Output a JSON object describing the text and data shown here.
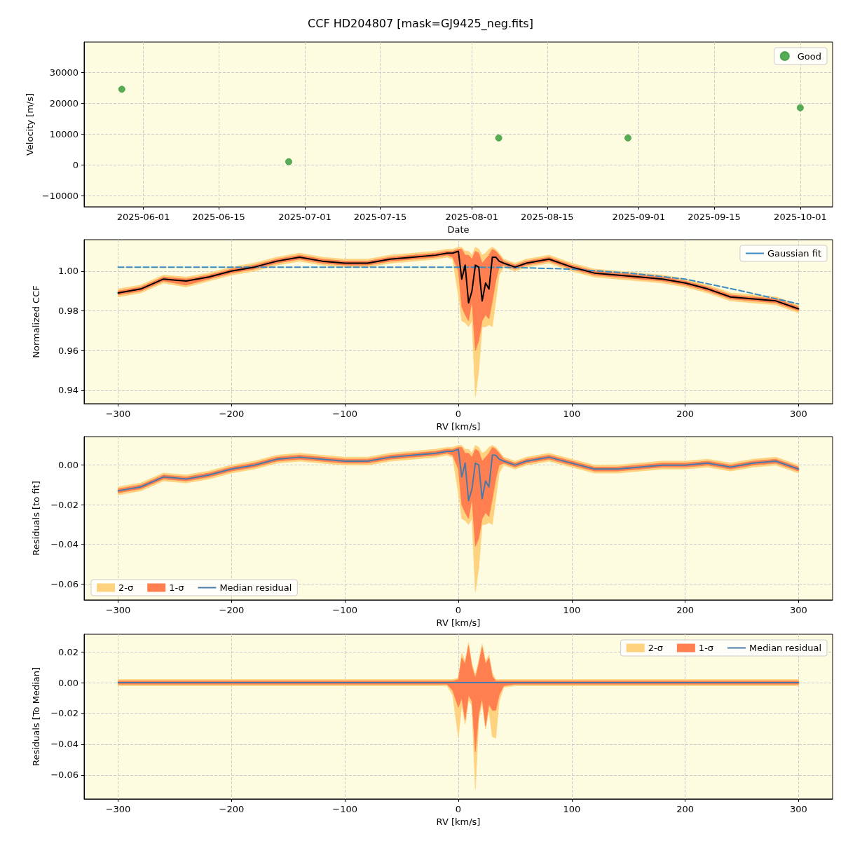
{
  "chart_data": [
    {
      "type": "scatter",
      "title": "CCF HD204807 [mask=GJ9425_neg.fits]",
      "xlabel": "Date",
      "ylabel": "Velocity [m/s]",
      "x": [
        "2025-05-28",
        "2025-06-28",
        "2025-08-06",
        "2025-08-30",
        "2025-10-01"
      ],
      "series": [
        {
          "name": "Good",
          "color": "#3c9e3c",
          "values": [
            24500,
            1000,
            8700,
            8700,
            18500
          ]
        }
      ],
      "xlim": [
        "2025-05-21",
        "2025-10-07"
      ],
      "xticks": [
        "2025-06-01",
        "2025-06-15",
        "2025-07-01",
        "2025-07-15",
        "2025-08-01",
        "2025-08-15",
        "2025-09-01",
        "2025-09-15",
        "2025-10-01"
      ],
      "ylim": [
        -13600,
        39800
      ],
      "yticks": [
        {
          "value": -10000,
          "label": "−10000"
        },
        0,
        10000,
        20000,
        30000
      ],
      "grid": true,
      "legend": "top right",
      "marker": "circle"
    },
    {
      "type": "line",
      "xlabel": "RV [km/s]",
      "ylabel": "Normalized CCF",
      "x": [
        -300,
        -280,
        -260,
        -240,
        -220,
        -200,
        -180,
        -160,
        -140,
        -120,
        -100,
        -80,
        -60,
        -40,
        -20,
        -10,
        -5,
        0,
        3,
        6,
        9,
        12,
        15,
        18,
        21,
        24,
        27,
        30,
        33,
        36,
        40,
        50,
        60,
        80,
        100,
        120,
        140,
        160,
        180,
        200,
        220,
        240,
        260,
        280,
        300
      ],
      "series": [
        {
          "color": "#fed27f",
          "values": [
            null,
            null,
            null,
            null,
            null,
            null,
            null,
            null,
            null,
            null,
            null,
            null,
            null,
            null,
            null,
            null,
            null,
            null,
            null,
            null,
            null,
            null,
            null,
            null,
            null,
            null,
            null,
            null,
            null,
            null,
            null,
            null,
            null,
            null,
            null,
            null,
            null,
            null,
            null,
            null,
            null,
            null,
            null,
            null,
            null
          ],
          "lower": [
            0.987,
            0.989,
            0.994,
            0.992,
            0.995,
            0.998,
            1.0,
            1.003,
            1.005,
            1.003,
            1.002,
            1.002,
            1.004,
            1.005,
            1.006,
            1.007,
            1.006,
            0.988,
            0.975,
            0.974,
            0.972,
            0.975,
            0.937,
            0.95,
            0.972,
            0.972,
            0.973,
            0.972,
            0.985,
            0.998,
            1.002,
            1.0,
            1.002,
            1.004,
            1.0,
            0.997,
            0.996,
            0.995,
            0.994,
            0.992,
            0.989,
            0.985,
            0.984,
            0.983,
            0.979
          ],
          "upper": [
            0.991,
            0.993,
            0.998,
            0.997,
            0.999,
            1.002,
            1.004,
            1.007,
            1.009,
            1.007,
            1.006,
            1.006,
            1.008,
            1.009,
            1.01,
            1.011,
            1.011,
            1.012,
            1.012,
            1.01,
            1.01,
            1.008,
            1.012,
            1.011,
            1.008,
            1.009,
            1.011,
            1.012,
            1.011,
            1.009,
            1.006,
            1.004,
            1.006,
            1.008,
            1.004,
            1.001,
            1.0,
            0.999,
            0.998,
            0.996,
            0.993,
            0.989,
            0.988,
            0.987,
            0.983
          ]
        },
        {
          "color": "#ff7f50",
          "values": [
            null,
            null,
            null,
            null,
            null,
            null,
            null,
            null,
            null,
            null,
            null,
            null,
            null,
            null,
            null,
            null,
            null,
            null,
            null,
            null,
            null,
            null,
            null,
            null,
            null,
            null,
            null,
            null,
            null,
            null,
            null,
            null,
            null,
            null,
            null,
            null,
            null,
            null,
            null,
            null,
            null,
            null,
            null,
            null,
            null
          ],
          "lower": [
            0.988,
            0.99,
            0.995,
            0.993,
            0.996,
            0.999,
            1.001,
            1.004,
            1.006,
            1.004,
            1.003,
            1.003,
            1.005,
            1.006,
            1.007,
            1.008,
            1.007,
            1.0,
            0.982,
            0.978,
            0.975,
            0.985,
            0.96,
            0.965,
            0.975,
            0.978,
            0.976,
            0.985,
            0.995,
            1.002,
            1.003,
            1.001,
            1.003,
            1.005,
            1.001,
            0.998,
            0.997,
            0.996,
            0.995,
            0.993,
            0.99,
            0.986,
            0.985,
            0.984,
            0.98
          ],
          "upper": [
            0.99,
            0.992,
            0.997,
            0.996,
            0.998,
            1.001,
            1.003,
            1.006,
            1.008,
            1.006,
            1.005,
            1.005,
            1.007,
            1.008,
            1.009,
            1.01,
            1.01,
            1.011,
            1.011,
            1.008,
            1.008,
            1.006,
            1.01,
            1.009,
            1.004,
            1.006,
            1.008,
            1.011,
            1.01,
            1.008,
            1.005,
            1.003,
            1.005,
            1.007,
            1.003,
            1.0,
            0.999,
            0.998,
            0.997,
            0.995,
            0.992,
            0.988,
            0.987,
            0.986,
            0.982
          ]
        },
        {
          "name": "Gaussian fit",
          "color": "#3b8bc2",
          "line_style": "dashed",
          "x": [
            -300,
            -200,
            -100,
            0,
            50,
            100,
            150,
            200,
            250,
            300
          ],
          "values": [
            1.002,
            1.002,
            1.002,
            1.002,
            1.0018,
            1.001,
            0.999,
            0.996,
            0.99,
            0.9835
          ]
        },
        {
          "color": "#000000",
          "values": [
            0.989,
            0.991,
            0.996,
            0.995,
            0.997,
            1.0,
            1.002,
            1.005,
            1.007,
            1.005,
            1.004,
            1.004,
            1.006,
            1.007,
            1.008,
            1.009,
            1.009,
            1.01,
            0.996,
            1.003,
            0.984,
            0.99,
            1.003,
            1.002,
            0.985,
            0.994,
            0.991,
            1.007,
            1.007,
            1.005,
            1.004,
            1.002,
            1.004,
            1.006,
            1.002,
            0.999,
            0.998,
            0.997,
            0.996,
            0.994,
            0.991,
            0.987,
            0.986,
            0.985,
            0.981
          ]
        }
      ],
      "xlim": [
        -330,
        330
      ],
      "xticks": [
        {
          "value": -300,
          "label": "−300"
        },
        {
          "value": -200,
          "label": "−200"
        },
        {
          "value": -100,
          "label": "−100"
        },
        0,
        100,
        200,
        300
      ],
      "ylim": [
        0.9333,
        1.0158
      ],
      "yticks": [
        0.94,
        0.96,
        0.98,
        {
          "value": 1,
          "label": "1.00"
        }
      ],
      "grid": true,
      "legend": "top right",
      "marker": "none"
    },
    {
      "type": "line",
      "xlabel": "RV [km/s]",
      "ylabel": "Residuals [to fit]",
      "x": [
        -300,
        -280,
        -260,
        -240,
        -220,
        -200,
        -180,
        -160,
        -140,
        -120,
        -100,
        -80,
        -60,
        -40,
        -20,
        -10,
        -5,
        0,
        3,
        6,
        9,
        12,
        15,
        18,
        21,
        24,
        27,
        30,
        33,
        36,
        40,
        50,
        60,
        80,
        100,
        120,
        140,
        160,
        180,
        200,
        220,
        240,
        260,
        280,
        300
      ],
      "series": [
        {
          "name": "2-σ",
          "color": "#fed27f",
          "values": [
            null,
            null,
            null,
            null,
            null,
            null,
            null,
            null,
            null,
            null,
            null,
            null,
            null,
            null,
            null,
            null,
            null,
            null,
            null,
            null,
            null,
            null,
            null,
            null,
            null,
            null,
            null,
            null,
            null,
            null,
            null,
            null,
            null,
            null,
            null,
            null,
            null,
            null,
            null,
            null,
            null,
            null,
            null,
            null,
            null
          ],
          "lower": [
            -0.015,
            -0.013,
            -0.008,
            -0.009,
            -0.007,
            -0.004,
            -0.002,
            0.001,
            0.002,
            0.001,
            0.0,
            0.0,
            0.002,
            0.003,
            0.004,
            0.005,
            0.004,
            -0.014,
            -0.027,
            -0.028,
            -0.03,
            -0.027,
            -0.064,
            -0.052,
            -0.03,
            -0.03,
            -0.029,
            -0.03,
            -0.017,
            -0.004,
            0.0,
            -0.002,
            0.0,
            0.002,
            -0.001,
            -0.004,
            -0.004,
            -0.003,
            -0.002,
            -0.002,
            -0.001,
            -0.003,
            -0.001,
            0.0,
            -0.004
          ],
          "upper": [
            -0.011,
            -0.009,
            -0.004,
            -0.005,
            -0.003,
            0.0,
            0.002,
            0.005,
            0.006,
            0.005,
            0.004,
            0.004,
            0.006,
            0.007,
            0.008,
            0.009,
            0.009,
            0.01,
            0.01,
            0.008,
            0.008,
            0.006,
            0.01,
            0.009,
            0.006,
            0.007,
            0.009,
            0.01,
            0.009,
            0.007,
            0.004,
            0.002,
            0.004,
            0.006,
            0.003,
            0.0,
            0.0,
            0.001,
            0.002,
            0.002,
            0.003,
            0.001,
            0.003,
            0.004,
            0.0
          ]
        },
        {
          "name": "1-σ",
          "color": "#ff7f50",
          "values": [
            null,
            null,
            null,
            null,
            null,
            null,
            null,
            null,
            null,
            null,
            null,
            null,
            null,
            null,
            null,
            null,
            null,
            null,
            null,
            null,
            null,
            null,
            null,
            null,
            null,
            null,
            null,
            null,
            null,
            null,
            null,
            null,
            null,
            null,
            null,
            null,
            null,
            null,
            null,
            null,
            null,
            null,
            null,
            null,
            null
          ],
          "lower": [
            -0.014,
            -0.012,
            -0.007,
            -0.008,
            -0.006,
            -0.003,
            -0.001,
            0.002,
            0.003,
            0.002,
            0.001,
            0.001,
            0.003,
            0.004,
            0.005,
            0.006,
            0.005,
            -0.002,
            -0.02,
            -0.024,
            -0.027,
            -0.017,
            -0.041,
            -0.037,
            -0.027,
            -0.024,
            -0.026,
            -0.017,
            -0.007,
            0.0,
            0.001,
            -0.001,
            0.001,
            0.003,
            0.0,
            -0.003,
            -0.003,
            -0.002,
            -0.001,
            -0.001,
            0.0,
            -0.002,
            0.0,
            0.001,
            -0.003
          ],
          "upper": [
            -0.012,
            -0.01,
            -0.005,
            -0.006,
            -0.004,
            -0.001,
            0.001,
            0.004,
            0.005,
            0.004,
            0.003,
            0.003,
            0.005,
            0.006,
            0.007,
            0.008,
            0.008,
            0.009,
            0.009,
            0.006,
            0.006,
            0.004,
            0.008,
            0.007,
            0.002,
            0.004,
            0.006,
            0.009,
            0.008,
            0.006,
            0.003,
            0.001,
            0.003,
            0.005,
            0.002,
            -0.001,
            -0.001,
            0.0,
            0.001,
            0.001,
            0.002,
            0.0,
            0.002,
            0.003,
            -0.001
          ]
        },
        {
          "name": "Median residual",
          "color": "#4a7aa8",
          "values": [
            -0.013,
            -0.011,
            -0.006,
            -0.007,
            -0.005,
            -0.002,
            0.0,
            0.003,
            0.004,
            0.003,
            0.002,
            0.002,
            0.004,
            0.005,
            0.006,
            0.007,
            0.007,
            0.008,
            -0.006,
            0.001,
            -0.018,
            -0.012,
            0.001,
            0.0,
            -0.017,
            -0.008,
            -0.011,
            0.005,
            0.005,
            0.003,
            0.002,
            0.0,
            0.002,
            0.004,
            0.001,
            -0.002,
            -0.002,
            -0.001,
            0.0,
            0.0,
            0.001,
            -0.001,
            0.001,
            0.002,
            -0.002
          ]
        }
      ],
      "xlim": [
        -330,
        330
      ],
      "xticks": [
        {
          "value": -300,
          "label": "−300"
        },
        {
          "value": -200,
          "label": "−200"
        },
        {
          "value": -100,
          "label": "−100"
        },
        0,
        100,
        200,
        300
      ],
      "ylim": [
        -0.0681,
        0.0144
      ],
      "yticks": [
        {
          "value": -0.06,
          "label": "−0.06"
        },
        {
          "value": -0.04,
          "label": "−0.04"
        },
        {
          "value": -0.02,
          "label": "−0.02"
        },
        {
          "value": 0,
          "label": "0.00"
        }
      ],
      "grid": true,
      "legend": "bottom left",
      "marker": "none"
    },
    {
      "type": "line",
      "xlabel": "RV [km/s]",
      "ylabel": "Residuals [To Median]",
      "x": [
        -300,
        -280,
        -260,
        -240,
        -220,
        -200,
        -180,
        -160,
        -140,
        -120,
        -100,
        -80,
        -60,
        -40,
        -20,
        -10,
        -5,
        0,
        3,
        6,
        9,
        12,
        15,
        18,
        21,
        24,
        27,
        30,
        33,
        36,
        40,
        50,
        60,
        80,
        100,
        120,
        140,
        160,
        180,
        200,
        220,
        240,
        260,
        280,
        300
      ],
      "series": [
        {
          "name": "2-σ",
          "color": "#fed27f",
          "values": [
            null,
            null,
            null,
            null,
            null,
            null,
            null,
            null,
            null,
            null,
            null,
            null,
            null,
            null,
            null,
            null,
            null,
            null,
            null,
            null,
            null,
            null,
            null,
            null,
            null,
            null,
            null,
            null,
            null,
            null,
            null,
            null,
            null,
            null,
            null,
            null,
            null,
            null,
            null,
            null,
            null,
            null,
            null,
            null,
            null
          ],
          "lower": [
            -0.002,
            -0.002,
            -0.002,
            -0.002,
            -0.002,
            -0.002,
            -0.002,
            -0.002,
            -0.002,
            -0.002,
            -0.002,
            -0.002,
            -0.002,
            -0.002,
            -0.002,
            -0.002,
            -0.008,
            -0.035,
            -0.014,
            -0.027,
            -0.011,
            -0.015,
            -0.069,
            -0.024,
            -0.013,
            -0.03,
            -0.018,
            -0.035,
            -0.036,
            -0.012,
            -0.003,
            -0.002,
            -0.002,
            -0.002,
            -0.002,
            -0.002,
            -0.002,
            -0.002,
            -0.002,
            -0.002,
            -0.002,
            -0.002,
            -0.002,
            -0.002,
            -0.002
          ],
          "upper": [
            0.002,
            0.002,
            0.002,
            0.002,
            0.002,
            0.002,
            0.002,
            0.002,
            0.002,
            0.002,
            0.002,
            0.002,
            0.002,
            0.002,
            0.002,
            0.002,
            0.002,
            0.003,
            0.019,
            0.014,
            0.026,
            0.012,
            0.005,
            0.014,
            0.025,
            0.014,
            0.018,
            0.006,
            0.002,
            0.002,
            0.002,
            0.002,
            0.002,
            0.002,
            0.002,
            0.002,
            0.002,
            0.002,
            0.002,
            0.002,
            0.002,
            0.002,
            0.002,
            0.002,
            0.002
          ]
        },
        {
          "name": "1-σ",
          "color": "#ff7f50",
          "values": [
            null,
            null,
            null,
            null,
            null,
            null,
            null,
            null,
            null,
            null,
            null,
            null,
            null,
            null,
            null,
            null,
            null,
            null,
            null,
            null,
            null,
            null,
            null,
            null,
            null,
            null,
            null,
            null,
            null,
            null,
            null,
            null,
            null,
            null,
            null,
            null,
            null,
            null,
            null,
            null,
            null,
            null,
            null,
            null,
            null
          ],
          "lower": [
            -0.001,
            -0.001,
            -0.001,
            -0.001,
            -0.001,
            -0.001,
            -0.001,
            -0.001,
            -0.001,
            -0.001,
            -0.001,
            -0.001,
            -0.001,
            -0.001,
            -0.001,
            -0.001,
            -0.005,
            -0.016,
            -0.01,
            -0.024,
            -0.008,
            -0.012,
            -0.045,
            -0.02,
            -0.01,
            -0.028,
            -0.014,
            -0.018,
            -0.018,
            -0.008,
            -0.002,
            -0.001,
            -0.001,
            -0.001,
            -0.001,
            -0.001,
            -0.001,
            -0.001,
            -0.001,
            -0.001,
            -0.001,
            -0.001,
            -0.001,
            -0.001,
            -0.001
          ],
          "upper": [
            0.001,
            0.001,
            0.001,
            0.001,
            0.001,
            0.001,
            0.001,
            0.001,
            0.001,
            0.001,
            0.001,
            0.001,
            0.001,
            0.001,
            0.001,
            0.001,
            0.001,
            0.002,
            0.016,
            0.012,
            0.024,
            0.01,
            0.003,
            0.012,
            0.023,
            0.012,
            0.016,
            0.004,
            0.001,
            0.001,
            0.001,
            0.001,
            0.001,
            0.001,
            0.001,
            0.001,
            0.001,
            0.001,
            0.001,
            0.001,
            0.001,
            0.001,
            0.001,
            0.001,
            0.001
          ]
        },
        {
          "name": "Median residual",
          "color": "#4a7aa8",
          "values": [
            0,
            0,
            0,
            0,
            0,
            0,
            0,
            0,
            0,
            0,
            0,
            0,
            0,
            0,
            0,
            0,
            0,
            0,
            0,
            0,
            0,
            0,
            0,
            0,
            0,
            0,
            0,
            0,
            0,
            0,
            0,
            0,
            0,
            0,
            0,
            0,
            0,
            0,
            0,
            0,
            0,
            0,
            0,
            0,
            0
          ]
        }
      ],
      "xlim": [
        -330,
        330
      ],
      "xticks": [
        {
          "value": -300,
          "label": "−300"
        },
        {
          "value": -200,
          "label": "−200"
        },
        {
          "value": -100,
          "label": "−100"
        },
        0,
        100,
        200,
        300
      ],
      "ylim": [
        -0.0755,
        0.0314
      ],
      "yticks": [
        {
          "value": -0.06,
          "label": "−0.06"
        },
        {
          "value": -0.04,
          "label": "−0.04"
        },
        {
          "value": -0.02,
          "label": "−0.02"
        },
        {
          "value": 0,
          "label": "0.00"
        },
        {
          "value": 0.02,
          "label": "0.02"
        }
      ],
      "grid": true,
      "legend": "top right",
      "marker": "none"
    }
  ]
}
